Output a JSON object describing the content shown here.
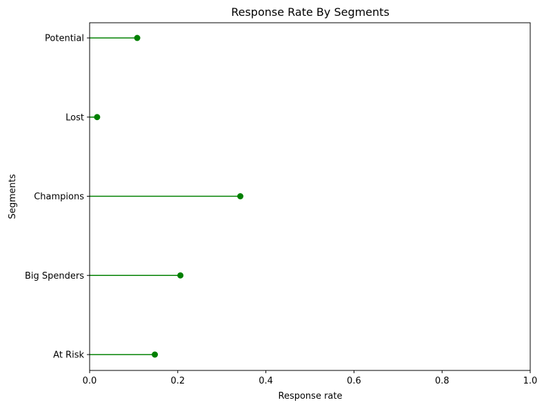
{
  "chart_data": {
    "type": "lollipop",
    "title": "Response Rate By Segments",
    "xlabel": "Response rate",
    "ylabel": "Segments",
    "xlim": [
      0,
      1
    ],
    "xticks": [
      0,
      0.2,
      0.4,
      0.6,
      0.8,
      1.0
    ],
    "xtick_labels": [
      "0.0",
      "0.2",
      "0.4",
      "0.6",
      "0.8",
      "1.0"
    ],
    "categories": [
      "At Risk",
      "Big Spenders",
      "Champions",
      "Lost",
      "Potential"
    ],
    "values": [
      0.148,
      0.206,
      0.342,
      0.017,
      0.108
    ],
    "color": "#008000",
    "grid": false
  }
}
